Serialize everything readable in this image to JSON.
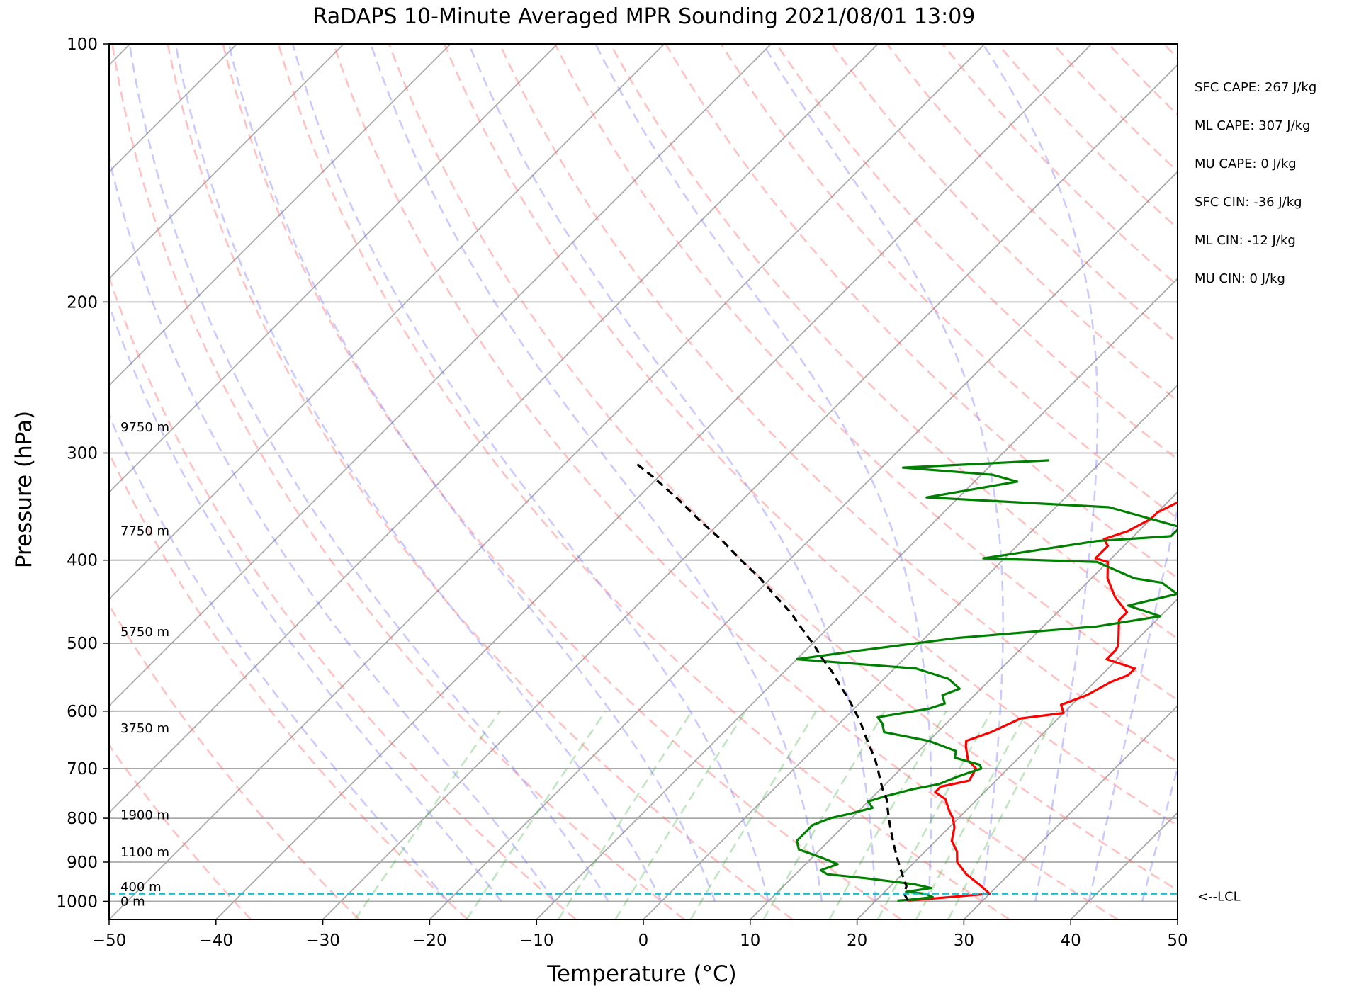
{
  "chart_data": {
    "type": "line",
    "title": "RaDAPS 10-Minute Averaged MPR Sounding 2021/08/01 13:09",
    "xlabel": "Temperature (°C)",
    "ylabel": "Pressure (hPa)",
    "xlim": [
      -50,
      50
    ],
    "ylim": [
      1050,
      100
    ],
    "y_scale": "log",
    "grid": true,
    "x_ticks": [
      -50,
      -40,
      -30,
      -20,
      -10,
      0,
      10,
      20,
      30,
      40,
      50
    ],
    "x_tick_labels": [
      "−50",
      "−40",
      "−30",
      "−20",
      "−10",
      "0",
      "10",
      "20",
      "30",
      "40",
      "50"
    ],
    "y_ticks": [
      100,
      200,
      300,
      400,
      500,
      600,
      700,
      800,
      900,
      1000
    ],
    "y_tick_labels": [
      "100",
      "200",
      "300",
      "400",
      "500",
      "600",
      "700",
      "800",
      "900",
      "1000"
    ],
    "height_labels": [
      {
        "text": "9750 m",
        "p": 280
      },
      {
        "text": "7750 m",
        "p": 370
      },
      {
        "text": "5750 m",
        "p": 485
      },
      {
        "text": "3750 m",
        "p": 628
      },
      {
        "text": "1900 m",
        "p": 793
      },
      {
        "text": "1100 m",
        "p": 876
      },
      {
        "text": "400 m",
        "p": 962
      },
      {
        "text": "0 m",
        "p": 1000
      }
    ],
    "indices": [
      "SFC CAPE: 267 J/kg",
      "ML CAPE: 307 J/kg",
      "MU CAPE: 0 J/kg",
      "SFC CIN: -36 J/kg",
      "ML CIN: -12 J/kg",
      "MU CIN: 0 J/kg"
    ],
    "lcl": {
      "p": 980,
      "label": "<--LCL",
      "color": "#17becf"
    },
    "series": [
      {
        "color": "#ff0000",
        "points": [
          [
            23,
            998
          ],
          [
            30,
            980
          ],
          [
            28.5,
            960
          ],
          [
            26,
            930
          ],
          [
            24,
            900
          ],
          [
            23,
            875
          ],
          [
            21.5,
            850
          ],
          [
            20.5,
            820
          ],
          [
            19.5,
            800
          ],
          [
            18.5,
            785
          ],
          [
            17,
            760
          ],
          [
            15.4,
            746
          ],
          [
            15.4,
            735
          ],
          [
            17.5,
            723
          ],
          [
            17,
            700
          ],
          [
            15.5,
            685
          ],
          [
            14,
            660
          ],
          [
            13.5,
            650
          ],
          [
            15,
            635
          ],
          [
            16.5,
            612
          ],
          [
            20,
            603
          ],
          [
            19,
            590
          ],
          [
            20.5,
            575
          ],
          [
            21.5,
            555
          ],
          [
            22.5,
            545
          ],
          [
            22.5,
            535
          ],
          [
            19,
            522
          ],
          [
            19,
            510
          ],
          [
            18.8,
            503
          ],
          [
            16.5,
            470
          ],
          [
            16.5,
            460
          ],
          [
            14,
            442
          ],
          [
            11.5,
            420
          ],
          [
            10,
            402
          ],
          [
            8.5,
            398
          ],
          [
            8.5,
            385
          ],
          [
            7.5,
            378
          ],
          [
            9,
            370
          ],
          [
            10,
            358
          ],
          [
            10,
            352
          ],
          [
            11,
            342
          ],
          [
            13,
            330
          ],
          [
            12,
            325
          ],
          [
            11,
            312
          ],
          [
            11.5,
            306
          ],
          [
            13,
            300
          ]
        ]
      },
      {
        "color": "#008000",
        "points": [
          [
            22,
            998
          ],
          [
            23,
            996
          ],
          [
            25,
            989
          ],
          [
            24,
            980
          ],
          [
            22,
            975
          ],
          [
            23,
            970
          ],
          [
            24,
            965
          ],
          [
            22,
            955
          ],
          [
            17,
            940
          ],
          [
            13,
            930
          ],
          [
            12,
            920
          ],
          [
            13,
            905
          ],
          [
            11,
            890
          ],
          [
            8,
            870
          ],
          [
            7,
            850
          ],
          [
            7,
            830
          ],
          [
            7,
            815
          ],
          [
            8,
            800
          ],
          [
            9.5,
            790
          ],
          [
            11,
            778
          ],
          [
            10,
            765
          ],
          [
            11,
            755
          ],
          [
            13,
            740
          ],
          [
            15,
            730
          ],
          [
            16,
            716
          ],
          [
            17.5,
            700
          ],
          [
            17,
            693
          ],
          [
            14,
            680
          ],
          [
            13.5,
            668
          ],
          [
            10,
            650
          ],
          [
            5,
            635
          ],
          [
            4,
            620
          ],
          [
            3,
            610
          ],
          [
            7,
            596
          ],
          [
            8,
            588
          ],
          [
            7,
            575
          ],
          [
            8,
            565
          ],
          [
            6,
            550
          ],
          [
            2,
            535
          ],
          [
            -10,
            522
          ],
          [
            -5,
            510
          ],
          [
            3,
            493
          ],
          [
            15,
            478
          ],
          [
            20,
            465
          ],
          [
            16,
            452
          ],
          [
            19.5,
            438
          ],
          [
            17,
            425
          ],
          [
            14,
            420
          ],
          [
            9,
            402
          ],
          [
            -2,
            398
          ],
          [
            1,
            392
          ],
          [
            7,
            380
          ],
          [
            13.5,
            375
          ],
          [
            13.5,
            366
          ],
          [
            5,
            347
          ],
          [
            -13,
            338
          ],
          [
            -6,
            324
          ],
          [
            -9,
            318
          ],
          [
            -18,
            312
          ],
          [
            -5,
            306
          ]
        ]
      },
      {
        "color": "#000000",
        "dashed": true,
        "points": [
          [
            23,
            998
          ],
          [
            22,
            980
          ],
          [
            21.5,
            960
          ],
          [
            20.5,
            940
          ],
          [
            19.5,
            920
          ],
          [
            18.5,
            900
          ],
          [
            17.5,
            880
          ],
          [
            16.5,
            860
          ],
          [
            15.5,
            840
          ],
          [
            14.5,
            820
          ],
          [
            13.5,
            800
          ],
          [
            12.5,
            780
          ],
          [
            11.5,
            760
          ],
          [
            10.2,
            740
          ],
          [
            9,
            720
          ],
          [
            7.8,
            700
          ],
          [
            6.5,
            680
          ],
          [
            5,
            660
          ],
          [
            3.5,
            640
          ],
          [
            2,
            620
          ],
          [
            0.3,
            600
          ],
          [
            -1.5,
            580
          ],
          [
            -3.5,
            560
          ],
          [
            -5.5,
            540
          ],
          [
            -7.8,
            520
          ],
          [
            -10,
            500
          ],
          [
            -12.5,
            480
          ],
          [
            -15,
            460
          ],
          [
            -18,
            440
          ],
          [
            -21,
            420
          ],
          [
            -24.5,
            400
          ],
          [
            -28,
            380
          ],
          [
            -32,
            360
          ],
          [
            -36,
            340
          ],
          [
            -40.5,
            320
          ],
          [
            -43.5,
            308
          ]
        ]
      }
    ]
  }
}
